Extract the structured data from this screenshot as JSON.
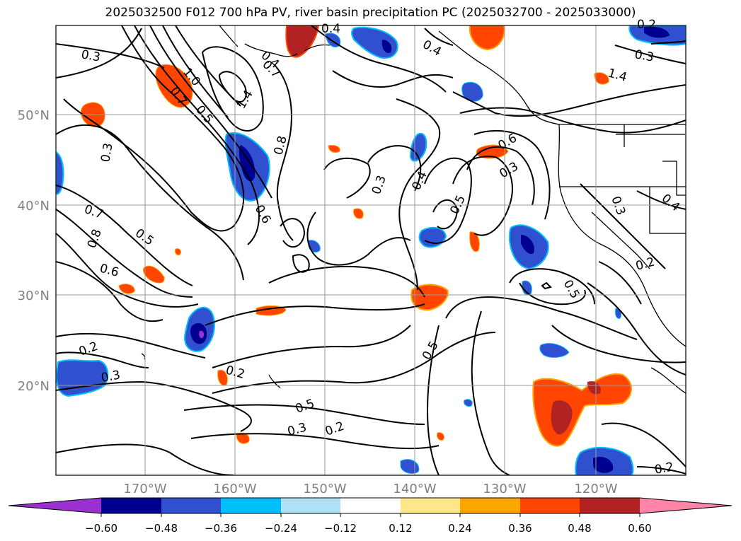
{
  "title": "2025032500 F012 700 hPa PV, river basin precipitation PC (2025032700 - 2025033000)",
  "lat_labels": [
    "50°N",
    "40°N",
    "30°N",
    "20°N"
  ],
  "lon_labels": [
    "170°W",
    "160°W",
    "150°W",
    "140°W",
    "130°W",
    "120°W"
  ],
  "contour_labels": [
    "0.3",
    "1.0",
    "0.7",
    "1.4",
    "0.5",
    "0.4",
    "0.3",
    "0.4",
    "0.7",
    "0.5",
    "0.8",
    "0.6",
    "0.2",
    "0.3",
    "0.2",
    "0.5",
    "0.3",
    "0.2",
    "0.6",
    "0.3",
    "0.4",
    "0.5",
    "0.3",
    "0.6",
    "0.7",
    "0.8",
    "1.4",
    "0.3",
    "0.4",
    "0.2",
    "0.5",
    "0.5",
    "0.2",
    "0.3",
    "0.4",
    "0.2"
  ],
  "colorbar": {
    "ticks": [
      "−0.60",
      "−0.48",
      "−0.36",
      "−0.24",
      "−0.12",
      "0.12",
      "0.24",
      "0.36",
      "0.48",
      "0.60"
    ],
    "colors": [
      "#9b30d0",
      "#000090",
      "#3050d0",
      "#00bfff",
      "#aee0f8",
      "#ffffff",
      "#ffe68a",
      "#ffa500",
      "#ff4500",
      "#b22222",
      "#ff85a8"
    ],
    "extend": "both"
  },
  "grid_color": "#999999",
  "axis_label_color": "#808080"
}
